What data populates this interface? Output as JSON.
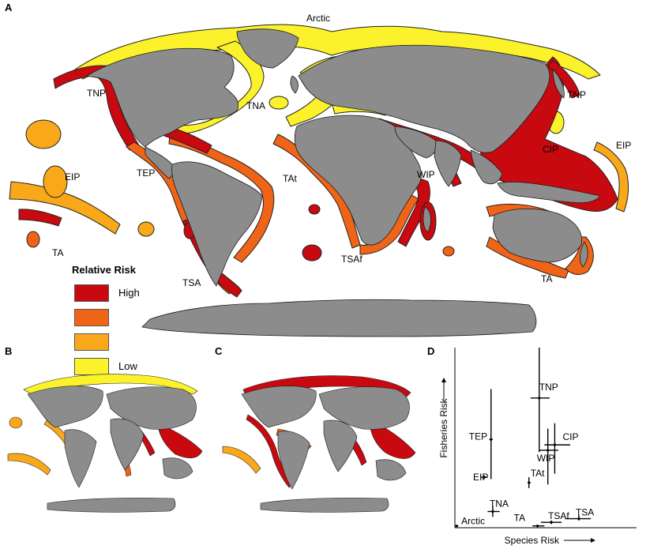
{
  "panels": {
    "a": "A",
    "b": "B",
    "c": "C",
    "d": "D"
  },
  "colors": {
    "high": "#c8090f",
    "mid_high": "#f06418",
    "mid_low": "#f9a81a",
    "low": "#fbf22b",
    "land": "#8c8c8c",
    "coast": "#1a1a1a"
  },
  "legend": {
    "title": "Relative Risk",
    "items": [
      {
        "label": "High",
        "color": "#c8090f"
      },
      {
        "label": "",
        "color": "#f06418"
      },
      {
        "label": "",
        "color": "#f9a81a"
      },
      {
        "label": "Low",
        "color": "#fbf22b"
      }
    ]
  },
  "region_labels": {
    "arctic": "Arctic",
    "tnp_west": "TNP",
    "tnp_east": "TNP",
    "tna": "TNA",
    "eip_west": "EIP",
    "eip_east": "EIP",
    "tep": "TEP",
    "tat": "TAt",
    "wip": "WIP",
    "cip": "CIP",
    "ta_west": "TA",
    "ta_east": "TA",
    "tsa": "TSA",
    "tsaf": "TSAf"
  },
  "chart_data": {
    "type": "scatter",
    "xlabel": "Species Risk",
    "ylabel": "Fisheries Risk",
    "points": [
      {
        "label": "TNP",
        "x": 0.49,
        "y": 0.72,
        "xerr": [
          0.44,
          0.55
        ],
        "yerr": [
          0.42,
          1.0
        ]
      },
      {
        "label": "CIP",
        "x": 0.58,
        "y": 0.46,
        "xerr": [
          0.52,
          0.67
        ],
        "yerr": [
          0.3,
          0.58
        ]
      },
      {
        "label": "WIP",
        "x": 0.54,
        "y": 0.43,
        "xerr": [
          0.49,
          0.6
        ],
        "yerr": [
          0.24,
          0.55
        ]
      },
      {
        "label": "TEP",
        "x": 0.21,
        "y": 0.49,
        "xerr": [
          0.2,
          0.22
        ],
        "yerr": [
          0.27,
          0.77
        ]
      },
      {
        "label": "EIP",
        "x": 0.17,
        "y": 0.28,
        "xerr": [
          0.15,
          0.19
        ],
        "yerr": [
          0.27,
          0.29
        ]
      },
      {
        "label": "TAt",
        "x": 0.43,
        "y": 0.25,
        "xerr": [
          0.43,
          0.44
        ],
        "yerr": [
          0.22,
          0.28
        ]
      },
      {
        "label": "TNA",
        "x": 0.22,
        "y": 0.09,
        "xerr": [
          0.19,
          0.26
        ],
        "yerr": [
          0.06,
          0.12
        ]
      },
      {
        "label": "Arctic",
        "x": 0.01,
        "y": 0.01,
        "xerr": [
          0.01,
          0.02
        ],
        "yerr": [
          0.01,
          0.01
        ]
      },
      {
        "label": "TA",
        "x": 0.48,
        "y": 0.01,
        "xerr": [
          0.45,
          0.52
        ],
        "yerr": [
          0.01,
          0.01
        ]
      },
      {
        "label": "TSAf",
        "x": 0.56,
        "y": 0.03,
        "xerr": [
          0.5,
          0.62
        ],
        "yerr": [
          0.02,
          0.04
        ]
      },
      {
        "label": "TSA",
        "x": 0.72,
        "y": 0.05,
        "xerr": [
          0.64,
          0.79
        ],
        "yerr": [
          0.04,
          0.07
        ]
      }
    ]
  }
}
